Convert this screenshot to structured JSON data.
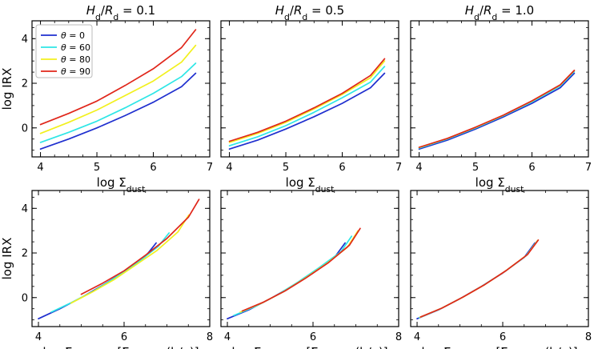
{
  "figure": {
    "legend": {
      "labels": [
        "θ = 0",
        "θ = 60",
        "θ = 80",
        "θ = 90"
      ],
      "colors": [
        "#1f2fcf",
        "#2ee6e6",
        "#f2f01e",
        "#e0261a"
      ],
      "placement": "top-left, top-left panel"
    }
  },
  "chart_data": [
    {
      "type": "line",
      "panel": "top-left",
      "title": "H_d/R_d = 0.1",
      "xlabel": "log Σ_dust",
      "ylabel": "log IRX",
      "xlim": [
        3.85,
        7.0
      ],
      "ylim": [
        -1.3,
        4.8
      ],
      "xticks": [
        4,
        5,
        6,
        7
      ],
      "yticks": [
        0,
        2,
        4
      ],
      "show_yticklabels": true,
      "series": [
        {
          "name": "θ = 0",
          "x": [
            4.0,
            4.5,
            5.0,
            5.5,
            6.0,
            6.5,
            6.75
          ],
          "y": [
            -0.95,
            -0.5,
            0.0,
            0.55,
            1.15,
            1.85,
            2.45
          ]
        },
        {
          "name": "θ = 60",
          "x": [
            4.0,
            4.5,
            5.0,
            5.5,
            6.0,
            6.5,
            6.75
          ],
          "y": [
            -0.65,
            -0.2,
            0.3,
            0.9,
            1.55,
            2.3,
            2.9
          ]
        },
        {
          "name": "θ = 80",
          "x": [
            4.0,
            4.5,
            5.0,
            5.5,
            6.0,
            6.5,
            6.75
          ],
          "y": [
            -0.25,
            0.25,
            0.8,
            1.45,
            2.1,
            2.95,
            3.7
          ]
        },
        {
          "name": "θ = 90",
          "x": [
            4.0,
            4.5,
            5.0,
            5.5,
            6.0,
            6.5,
            6.75
          ],
          "y": [
            0.15,
            0.65,
            1.2,
            1.9,
            2.65,
            3.6,
            4.4
          ]
        }
      ]
    },
    {
      "type": "line",
      "panel": "top-middle",
      "title": "H_d/R_d = 0.5",
      "xlabel": "log Σ_dust",
      "ylabel": "",
      "xlim": [
        3.85,
        7.0
      ],
      "ylim": [
        -1.3,
        4.8
      ],
      "xticks": [
        4,
        5,
        6,
        7
      ],
      "yticks": [
        0,
        2,
        4
      ],
      "show_yticklabels": false,
      "series": [
        {
          "name": "θ = 0",
          "x": [
            4.0,
            4.5,
            5.0,
            5.5,
            6.0,
            6.5,
            6.75
          ],
          "y": [
            -0.95,
            -0.55,
            -0.05,
            0.5,
            1.1,
            1.8,
            2.45
          ]
        },
        {
          "name": "θ = 60",
          "x": [
            4.0,
            4.5,
            5.0,
            5.5,
            6.0,
            6.5,
            6.75
          ],
          "y": [
            -0.8,
            -0.4,
            0.1,
            0.7,
            1.35,
            2.05,
            2.75
          ]
        },
        {
          "name": "θ = 80",
          "x": [
            4.0,
            4.5,
            5.0,
            5.5,
            6.0,
            6.5,
            6.75
          ],
          "y": [
            -0.65,
            -0.25,
            0.25,
            0.85,
            1.5,
            2.25,
            3.0
          ]
        },
        {
          "name": "θ = 90",
          "x": [
            4.0,
            4.5,
            5.0,
            5.5,
            6.0,
            6.5,
            6.75
          ],
          "y": [
            -0.6,
            -0.2,
            0.3,
            0.9,
            1.55,
            2.35,
            3.1
          ]
        }
      ]
    },
    {
      "type": "line",
      "panel": "top-right",
      "title": "H_d/R_d = 1.0",
      "xlabel": "log Σ_dust",
      "ylabel": "",
      "xlim": [
        3.85,
        7.0
      ],
      "ylim": [
        -1.3,
        4.8
      ],
      "xticks": [
        4,
        5,
        6,
        7
      ],
      "yticks": [
        0,
        2,
        4
      ],
      "show_yticklabels": false,
      "series": [
        {
          "name": "θ = 0",
          "x": [
            4.0,
            4.5,
            5.0,
            5.5,
            6.0,
            6.5,
            6.75
          ],
          "y": [
            -0.95,
            -0.55,
            -0.05,
            0.5,
            1.1,
            1.8,
            2.45
          ]
        },
        {
          "name": "θ = 60",
          "x": [
            4.0,
            4.5,
            5.0,
            5.5,
            6.0,
            6.5,
            6.75
          ],
          "y": [
            -0.9,
            -0.5,
            0.0,
            0.55,
            1.17,
            1.88,
            2.53
          ]
        },
        {
          "name": "θ = 80",
          "x": [
            4.0,
            4.5,
            5.0,
            5.5,
            6.0,
            6.5,
            6.75
          ],
          "y": [
            -0.88,
            -0.48,
            0.02,
            0.57,
            1.2,
            1.92,
            2.57
          ]
        },
        {
          "name": "θ = 90",
          "x": [
            4.0,
            4.5,
            5.0,
            5.5,
            6.0,
            6.5,
            6.75
          ],
          "y": [
            -0.87,
            -0.47,
            0.03,
            0.58,
            1.21,
            1.93,
            2.58
          ]
        }
      ]
    },
    {
      "type": "line",
      "panel": "bottom-left",
      "title": "",
      "xlabel": "log Σ_dust, proj [Σ_dust ÷ (b/a)]",
      "ylabel": "log IRX",
      "xlim": [
        3.85,
        8.0
      ],
      "ylim": [
        -1.3,
        4.8
      ],
      "xticks": [
        4,
        6,
        8
      ],
      "yticks": [
        0,
        2,
        4
      ],
      "show_yticklabels": true,
      "series": [
        {
          "name": "θ = 0",
          "x": [
            4.0,
            4.5,
            5.0,
            5.5,
            6.0,
            6.5,
            6.75
          ],
          "y": [
            -0.95,
            -0.5,
            0.0,
            0.55,
            1.15,
            1.85,
            2.45
          ]
        },
        {
          "name": "θ = 60",
          "x": [
            4.3,
            4.8,
            5.3,
            5.8,
            6.3,
            6.8,
            7.05
          ],
          "y": [
            -0.65,
            -0.2,
            0.3,
            0.9,
            1.55,
            2.3,
            2.9
          ]
        },
        {
          "name": "θ = 80",
          "x": [
            4.76,
            5.26,
            5.76,
            6.26,
            6.76,
            7.26,
            7.51
          ],
          "y": [
            -0.25,
            0.25,
            0.8,
            1.45,
            2.1,
            2.95,
            3.7
          ]
        },
        {
          "name": "θ = 90",
          "x": [
            5.0,
            5.5,
            6.0,
            6.5,
            7.0,
            7.5,
            7.75
          ],
          "y": [
            0.15,
            0.65,
            1.2,
            1.9,
            2.65,
            3.6,
            4.4
          ]
        }
      ]
    },
    {
      "type": "line",
      "panel": "bottom-middle",
      "title": "",
      "xlabel": "log Σ_dust, proj [Σ_dust ÷ (b/a)]",
      "ylabel": "",
      "xlim": [
        3.85,
        8.0
      ],
      "ylim": [
        -1.3,
        4.8
      ],
      "xticks": [
        4,
        6,
        8
      ],
      "yticks": [
        0,
        2,
        4
      ],
      "show_yticklabels": false,
      "series": [
        {
          "name": "θ = 0",
          "x": [
            4.0,
            4.5,
            5.0,
            5.5,
            6.0,
            6.5,
            6.75
          ],
          "y": [
            -0.95,
            -0.55,
            -0.05,
            0.5,
            1.1,
            1.8,
            2.45
          ]
        },
        {
          "name": "θ = 60",
          "x": [
            4.15,
            4.65,
            5.15,
            5.65,
            6.15,
            6.65,
            6.9
          ],
          "y": [
            -0.8,
            -0.4,
            0.1,
            0.7,
            1.35,
            2.05,
            2.75
          ]
        },
        {
          "name": "θ = 80",
          "x": [
            4.3,
            4.8,
            5.3,
            5.8,
            6.3,
            6.8,
            7.05
          ],
          "y": [
            -0.65,
            -0.25,
            0.25,
            0.85,
            1.5,
            2.25,
            3.0
          ]
        },
        {
          "name": "θ = 90",
          "x": [
            4.35,
            4.85,
            5.35,
            5.85,
            6.35,
            6.85,
            7.1
          ],
          "y": [
            -0.6,
            -0.2,
            0.3,
            0.9,
            1.55,
            2.35,
            3.1
          ]
        }
      ]
    },
    {
      "type": "line",
      "panel": "bottom-right",
      "title": "",
      "xlabel": "log Σ_dust, proj [Σ_dust ÷ (b/a)]",
      "ylabel": "",
      "xlim": [
        3.85,
        8.0
      ],
      "ylim": [
        -1.3,
        4.8
      ],
      "xticks": [
        4,
        6,
        8
      ],
      "yticks": [
        0,
        2,
        4
      ],
      "show_yticklabels": false,
      "series": [
        {
          "name": "θ = 0",
          "x": [
            4.0,
            4.5,
            5.0,
            5.5,
            6.0,
            6.5,
            6.75
          ],
          "y": [
            -0.95,
            -0.55,
            -0.05,
            0.5,
            1.1,
            1.8,
            2.45
          ]
        },
        {
          "name": "θ = 60",
          "x": [
            4.05,
            4.55,
            5.05,
            5.55,
            6.05,
            6.55,
            6.8
          ],
          "y": [
            -0.9,
            -0.5,
            0.0,
            0.55,
            1.17,
            1.88,
            2.53
          ]
        },
        {
          "name": "θ = 80",
          "x": [
            4.07,
            4.57,
            5.07,
            5.57,
            6.07,
            6.57,
            6.82
          ],
          "y": [
            -0.88,
            -0.48,
            0.02,
            0.57,
            1.2,
            1.92,
            2.57
          ]
        },
        {
          "name": "θ = 90",
          "x": [
            4.08,
            4.58,
            5.08,
            5.58,
            6.08,
            6.58,
            6.83
          ],
          "y": [
            -0.87,
            -0.47,
            0.03,
            0.58,
            1.21,
            1.93,
            2.58
          ]
        }
      ]
    }
  ]
}
